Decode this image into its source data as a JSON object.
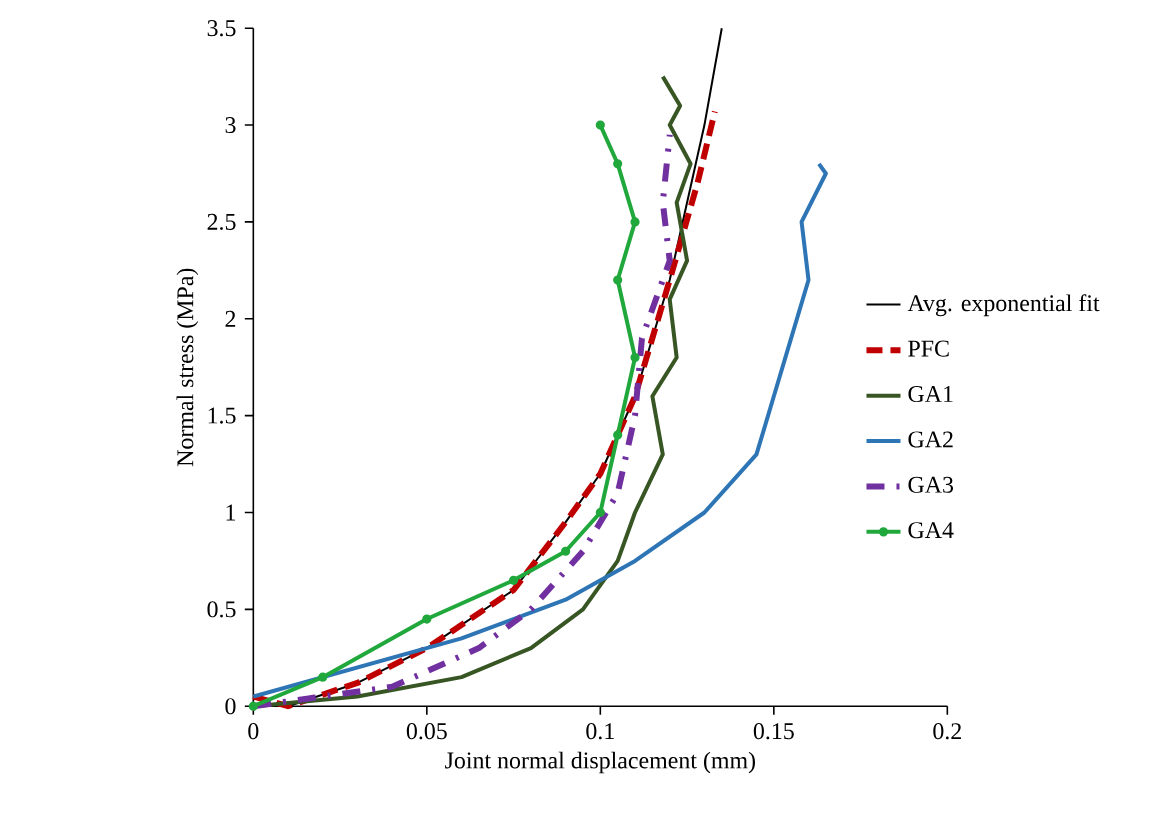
{
  "chart_data": {
    "type": "line",
    "xlabel": "Joint normal displacement (mm)",
    "ylabel": "Normal stress (MPa)",
    "xlim": [
      0,
      0.2
    ],
    "ylim": [
      0,
      3.5
    ],
    "xticks": [
      0,
      0.05,
      0.1,
      0.15,
      0.2
    ],
    "yticks": [
      0,
      0.5,
      1,
      1.5,
      2,
      2.5,
      3,
      3.5
    ],
    "grid": false,
    "legend": "right",
    "series": [
      {
        "name": "Avg. exponential fit",
        "color": "#000000",
        "line_style": "solid",
        "marker": "none",
        "x": [
          0.01,
          0.03,
          0.05,
          0.075,
          0.09,
          0.1,
          0.11,
          0.12,
          0.13,
          0.135
        ],
        "values": [
          0,
          0.12,
          0.3,
          0.6,
          0.95,
          1.2,
          1.6,
          2.2,
          3.0,
          3.5
        ]
      },
      {
        "name": "PFC",
        "color": "#c00000",
        "line_style": "dashed",
        "marker": "none",
        "x": [
          0,
          0.01,
          0.03,
          0.05,
          0.075,
          0.09,
          0.1,
          0.11,
          0.12,
          0.128,
          0.133
        ],
        "values": [
          0.05,
          0,
          0.12,
          0.3,
          0.6,
          0.95,
          1.2,
          1.6,
          2.2,
          2.7,
          3.07
        ]
      },
      {
        "name": "GA1",
        "color": "#375623",
        "line_style": "solid",
        "marker": "none",
        "x": [
          0,
          0.03,
          0.06,
          0.08,
          0.095,
          0.105,
          0.11,
          0.118,
          0.115,
          0.122,
          0.12,
          0.125,
          0.122,
          0.126,
          0.12,
          0.123,
          0.118
        ],
        "values": [
          0,
          0.05,
          0.15,
          0.3,
          0.5,
          0.75,
          1.0,
          1.3,
          1.6,
          1.8,
          2.1,
          2.3,
          2.6,
          2.8,
          3.0,
          3.1,
          3.25
        ]
      },
      {
        "name": "GA2",
        "color": "#2e75b6",
        "line_style": "solid",
        "marker": "none",
        "x": [
          0,
          0.03,
          0.06,
          0.09,
          0.11,
          0.13,
          0.145,
          0.15,
          0.155,
          0.16,
          0.158,
          0.165,
          0.163
        ],
        "values": [
          0.05,
          0.2,
          0.35,
          0.55,
          0.75,
          1.0,
          1.3,
          1.6,
          1.9,
          2.2,
          2.5,
          2.75,
          2.8
        ]
      },
      {
        "name": "GA3",
        "color": "#7030a0",
        "line_style": "dashdot",
        "marker": "none",
        "x": [
          0,
          0.04,
          0.065,
          0.08,
          0.095,
          0.105,
          0.11,
          0.112,
          0.12,
          0.118,
          0.12
        ],
        "values": [
          0,
          0.1,
          0.3,
          0.5,
          0.8,
          1.1,
          1.5,
          1.9,
          2.3,
          2.6,
          2.95
        ]
      },
      {
        "name": "GA4",
        "color": "#21a83c",
        "line_style": "solid",
        "marker": "circle",
        "x": [
          0,
          0.02,
          0.05,
          0.075,
          0.09,
          0.1,
          0.105,
          0.11,
          0.105,
          0.11,
          0.105,
          0.1
        ],
        "values": [
          0,
          0.15,
          0.45,
          0.65,
          0.8,
          1.0,
          1.4,
          1.8,
          2.2,
          2.5,
          2.8,
          3.0
        ]
      }
    ]
  }
}
